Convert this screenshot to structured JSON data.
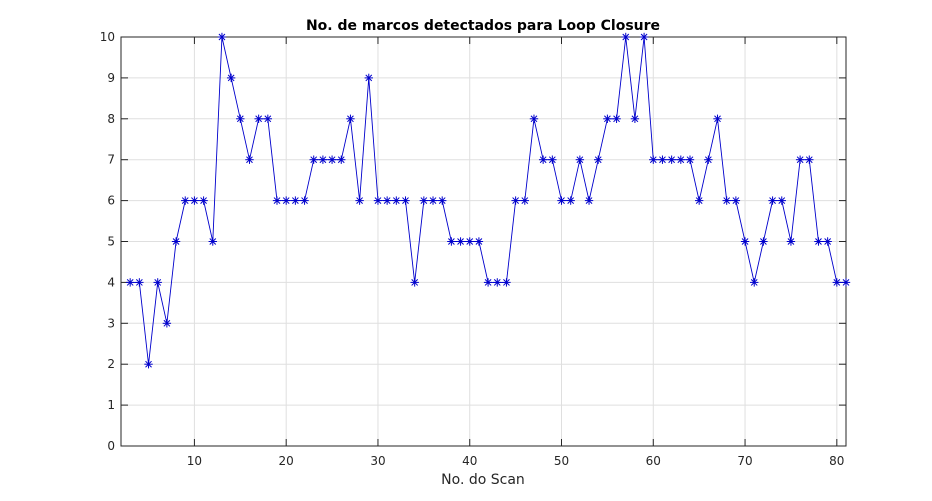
{
  "chart_data": {
    "type": "line",
    "title": "No. de marcos detectados para Loop Closure",
    "xlabel": "No. do Scan",
    "ylabel": "",
    "xlim": [
      2,
      81
    ],
    "ylim": [
      0,
      10
    ],
    "xticks": [
      10,
      20,
      30,
      40,
      50,
      60,
      70,
      80
    ],
    "yticks": [
      0,
      1,
      2,
      3,
      4,
      5,
      6,
      7,
      8,
      9,
      10
    ],
    "grid": true,
    "marker": "*",
    "color": "#0000cc",
    "x": [
      3,
      4,
      5,
      6,
      7,
      8,
      9,
      10,
      11,
      12,
      13,
      14,
      15,
      16,
      17,
      18,
      19,
      20,
      21,
      22,
      23,
      24,
      25,
      26,
      27,
      28,
      29,
      30,
      31,
      32,
      33,
      34,
      35,
      36,
      37,
      38,
      39,
      40,
      41,
      42,
      43,
      44,
      45,
      46,
      47,
      48,
      49,
      50,
      51,
      52,
      53,
      54,
      55,
      56,
      57,
      58,
      59,
      60,
      61,
      62,
      63,
      64,
      65,
      66,
      67,
      68,
      69,
      70,
      71,
      72,
      73,
      74,
      75,
      76,
      77,
      78,
      79,
      80,
      81
    ],
    "series": [
      {
        "values": [
          4,
          4,
          2,
          4,
          3,
          5,
          6,
          6,
          6,
          5,
          10,
          9,
          8,
          7,
          8,
          8,
          6,
          6,
          6,
          6,
          7,
          7,
          7,
          7,
          8,
          6,
          9,
          6,
          6,
          6,
          6,
          4,
          6,
          6,
          6,
          5,
          5,
          5,
          5,
          4,
          4,
          4,
          6,
          6,
          8,
          7,
          7,
          6,
          6,
          7,
          6,
          7,
          8,
          8,
          10,
          8,
          10,
          7,
          7,
          7,
          7,
          7,
          6,
          7,
          8,
          6,
          6,
          5,
          4,
          5,
          6,
          6,
          5,
          7,
          7,
          5,
          5,
          4,
          4
        ]
      }
    ]
  }
}
